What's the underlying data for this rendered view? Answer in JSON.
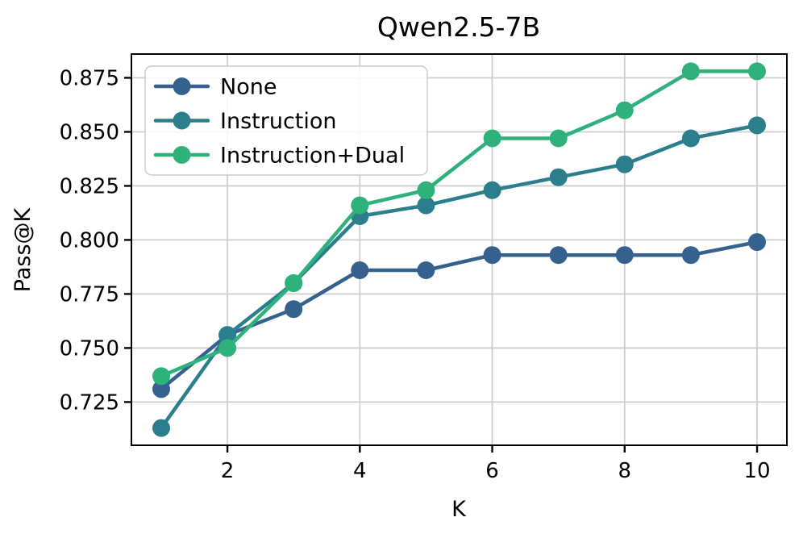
{
  "figure": {
    "title": "Qwen2.5-7B",
    "xlabel": "K",
    "ylabel": "Pass@K"
  },
  "chart_data": {
    "type": "line",
    "title": "Qwen2.5-7B",
    "xlabel": "K",
    "ylabel": "Pass@K",
    "x": [
      1,
      2,
      3,
      4,
      5,
      6,
      7,
      8,
      9,
      10
    ],
    "series": [
      {
        "name": "None",
        "color": "#35618f",
        "values": [
          0.731,
          0.756,
          0.768,
          0.786,
          0.786,
          0.793,
          0.793,
          0.793,
          0.793,
          0.799
        ]
      },
      {
        "name": "Instruction",
        "color": "#2b7f8d",
        "values": [
          0.713,
          0.756,
          0.78,
          0.811,
          0.816,
          0.823,
          0.829,
          0.835,
          0.847,
          0.853
        ]
      },
      {
        "name": "Instruction+Dual",
        "color": "#2fb17c",
        "values": [
          0.737,
          0.75,
          0.78,
          0.816,
          0.823,
          0.847,
          0.847,
          0.86,
          0.878,
          0.878
        ]
      }
    ],
    "x_ticks": [
      2,
      4,
      6,
      8,
      10
    ],
    "x_tick_labels": [
      "2",
      "4",
      "6",
      "8",
      "10"
    ],
    "y_ticks": [
      0.725,
      0.75,
      0.775,
      0.8,
      0.825,
      0.85,
      0.875
    ],
    "y_tick_labels": [
      "0.725",
      "0.750",
      "0.775",
      "0.800",
      "0.825",
      "0.850",
      "0.875"
    ],
    "xlim": [
      0.55,
      10.45
    ],
    "ylim": [
      0.705,
      0.886
    ],
    "grid": true,
    "legend_position": "upper left"
  },
  "style": {
    "background": "#ffffff",
    "grid_color": "#cfcfcf",
    "spine_color": "#000000",
    "legend_border_color": "#cccccc",
    "legend_background": "rgba(255,255,255,0.85)"
  }
}
